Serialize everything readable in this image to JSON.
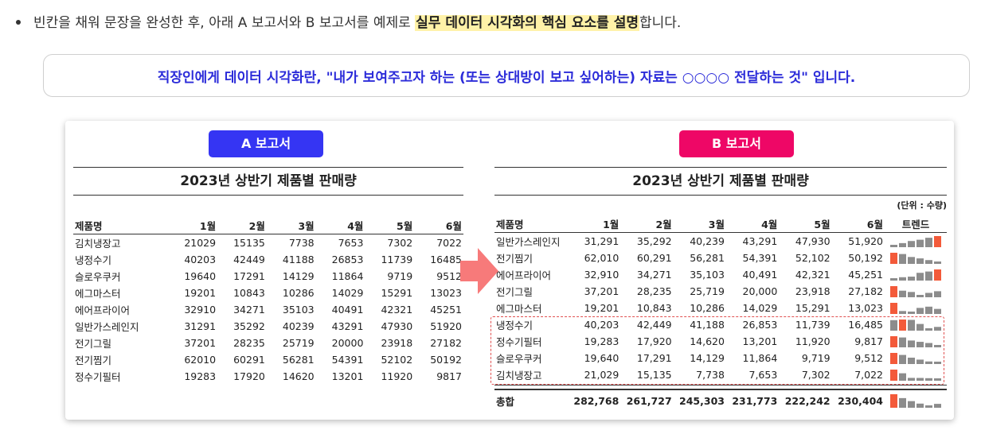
{
  "instruction": {
    "prefix": "빈칸을 채워 문장을 완성한 후, 아래 A 보고서와 B 보고서를 예제로 ",
    "highlight": "실무 데이터 시각화의 핵심 요소를 설명",
    "suffix": "합니다."
  },
  "callout_text": "직장인에게 데이터 시각화란, \"내가 보여주고자 하는 (또는 상대방이 보고 싶어하는) 자료는 ○○○○ 전달하는 것\" 입니다.",
  "report_a": {
    "label": "A 보고서",
    "title": "2023년 상반기 제품별 판매량",
    "headers": [
      "제품명",
      "1월",
      "2월",
      "3월",
      "4월",
      "5월",
      "6월"
    ],
    "rows": [
      [
        "김치냉장고",
        "21029",
        "15135",
        "7738",
        "7653",
        "7302",
        "7022"
      ],
      [
        "냉정수기",
        "40203",
        "42449",
        "41188",
        "26853",
        "11739",
        "16485"
      ],
      [
        "슬로우쿠커",
        "19640",
        "17291",
        "14129",
        "11864",
        "9719",
        "9512"
      ],
      [
        "에그마스터",
        "19201",
        "10843",
        "10286",
        "14029",
        "15291",
        "13023"
      ],
      [
        "에어프라이어",
        "32910",
        "34271",
        "35103",
        "40491",
        "42321",
        "45251"
      ],
      [
        "일반가스레인지",
        "31291",
        "35292",
        "40239",
        "43291",
        "47930",
        "51920"
      ],
      [
        "전기그릴",
        "37201",
        "28235",
        "25719",
        "20000",
        "23918",
        "27182"
      ],
      [
        "전기찜기",
        "62010",
        "60291",
        "56281",
        "54391",
        "52102",
        "50192"
      ],
      [
        "정수기필터",
        "19283",
        "17920",
        "14620",
        "13201",
        "11920",
        "9817"
      ]
    ]
  },
  "report_b": {
    "label": "B 보고서",
    "title": "2023년 상반기 제품별 판매량",
    "unit_note": "(단위 : 수량)",
    "headers": [
      "제품명",
      "1월",
      "2월",
      "3월",
      "4월",
      "5월",
      "6월",
      "트렌드"
    ],
    "rows": [
      {
        "cells": [
          "일반가스레인지",
          "31,291",
          "35,292",
          "40,239",
          "43,291",
          "47,930",
          "51,920"
        ],
        "values": [
          31291,
          35292,
          40239,
          43291,
          47930,
          51920
        ]
      },
      {
        "cells": [
          "전기찜기",
          "62,010",
          "60,291",
          "56,281",
          "54,391",
          "52,102",
          "50,192"
        ],
        "values": [
          62010,
          60291,
          56281,
          54391,
          52102,
          50192
        ]
      },
      {
        "cells": [
          "에어프라이어",
          "32,910",
          "34,271",
          "35,103",
          "40,491",
          "42,321",
          "45,251"
        ],
        "values": [
          32910,
          34271,
          35103,
          40491,
          42321,
          45251
        ]
      },
      {
        "cells": [
          "전기그릴",
          "37,201",
          "28,235",
          "25,719",
          "20,000",
          "23,918",
          "27,182"
        ],
        "values": [
          37201,
          28235,
          25719,
          20000,
          23918,
          27182
        ]
      },
      {
        "cells": [
          "에그마스터",
          "19,201",
          "10,843",
          "10,286",
          "14,029",
          "15,291",
          "13,023"
        ],
        "values": [
          19201,
          10843,
          10286,
          14029,
          15291,
          13023
        ]
      },
      {
        "cells": [
          "냉정수기",
          "40,203",
          "42,449",
          "41,188",
          "26,853",
          "11,739",
          "16,485"
        ],
        "values": [
          40203,
          42449,
          41188,
          26853,
          11739,
          16485
        ]
      },
      {
        "cells": [
          "정수기필터",
          "19,283",
          "17,920",
          "14,620",
          "13,201",
          "11,920",
          "9,817"
        ],
        "values": [
          19283,
          17920,
          14620,
          13201,
          11920,
          9817
        ]
      },
      {
        "cells": [
          "슬로우쿠커",
          "19,640",
          "17,291",
          "14,129",
          "11,864",
          "9,719",
          "9,512"
        ],
        "values": [
          19640,
          17291,
          14129,
          11864,
          9719,
          9512
        ]
      },
      {
        "cells": [
          "김치냉장고",
          "21,029",
          "15,135",
          "7,738",
          "7,653",
          "7,302",
          "7,022"
        ],
        "values": [
          21029,
          15135,
          7738,
          7653,
          7302,
          7022
        ]
      }
    ],
    "total": {
      "cells": [
        "총합",
        "282,768",
        "261,727",
        "245,303",
        "231,773",
        "222,242",
        "230,404"
      ],
      "values": [
        282768,
        261727,
        245303,
        231773,
        222242,
        230404
      ]
    }
  },
  "colors": {
    "pill_a": "#3535f3",
    "pill_b": "#ee0766",
    "callout_text": "#2b2bd9",
    "highlight": "#fff2a8",
    "spark_max": "#f35a3a",
    "spark_other": "#8c8c8c",
    "arrow": "#f77a7a",
    "dashed_border": "#e15050"
  }
}
